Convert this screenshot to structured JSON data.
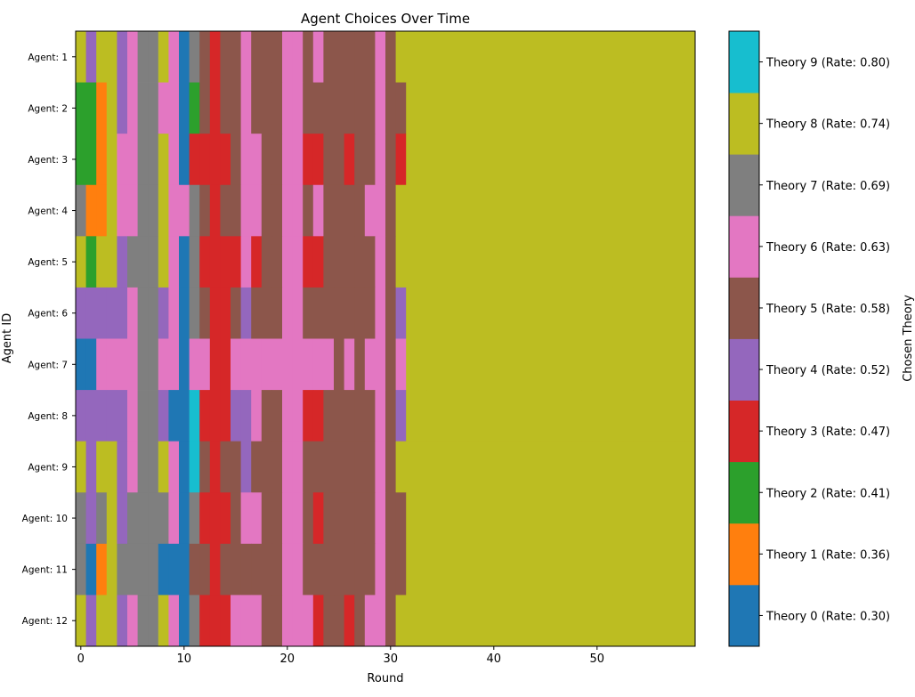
{
  "chart_data": {
    "type": "heatmap",
    "title": "Agent Choices Over Time",
    "xlabel": "Round",
    "ylabel": "Agent ID",
    "colorbar_label": "Chosen Theory",
    "x_ticks": [
      0,
      10,
      20,
      30,
      40,
      50
    ],
    "xlim": [
      -0.5,
      59.5
    ],
    "rounds": 60,
    "agents": [
      "Agent: 1",
      "Agent: 2",
      "Agent: 3",
      "Agent: 4",
      "Agent: 5",
      "Agent: 6",
      "Agent: 7",
      "Agent: 8",
      "Agent: 9",
      "Agent: 10",
      "Agent: 11",
      "Agent: 12"
    ],
    "theories": [
      {
        "label": "Theory 0 (Rate: 0.30)",
        "color": "#1f77b4"
      },
      {
        "label": "Theory 1 (Rate: 0.36)",
        "color": "#ff7f0e"
      },
      {
        "label": "Theory 2 (Rate: 0.41)",
        "color": "#2ca02c"
      },
      {
        "label": "Theory 3 (Rate: 0.47)",
        "color": "#d62728"
      },
      {
        "label": "Theory 4 (Rate: 0.52)",
        "color": "#9467bd"
      },
      {
        "label": "Theory 5 (Rate: 0.58)",
        "color": "#8c564b"
      },
      {
        "label": "Theory 6 (Rate: 0.63)",
        "color": "#e377c2"
      },
      {
        "label": "Theory 7 (Rate: 0.69)",
        "color": "#7f7f7f"
      },
      {
        "label": "Theory 8 (Rate: 0.74)",
        "color": "#bcbd22"
      },
      {
        "label": "Theory 9 (Rate: 0.80)",
        "color": "#17becf"
      }
    ],
    "choices": [
      [
        8,
        4,
        8,
        8,
        4,
        6,
        7,
        7,
        8,
        6,
        0,
        7,
        5,
        3,
        5,
        5,
        6,
        5,
        5,
        5,
        6,
        6,
        5,
        6,
        5,
        5,
        5,
        5,
        5,
        6,
        5,
        8,
        8,
        8,
        8,
        8,
        8,
        8,
        8,
        8,
        8,
        8,
        8,
        8,
        8,
        8,
        8,
        8,
        8,
        8,
        8,
        8,
        8,
        8,
        8,
        8,
        8,
        8,
        8,
        8
      ],
      [
        2,
        2,
        1,
        8,
        4,
        6,
        7,
        7,
        6,
        6,
        0,
        2,
        5,
        3,
        5,
        5,
        6,
        5,
        5,
        5,
        6,
        6,
        5,
        5,
        5,
        5,
        5,
        5,
        5,
        6,
        5,
        5,
        8,
        8,
        8,
        8,
        8,
        8,
        8,
        8,
        8,
        8,
        8,
        8,
        8,
        8,
        8,
        8,
        8,
        8,
        8,
        8,
        8,
        8,
        8,
        8,
        8,
        8,
        8,
        8
      ],
      [
        2,
        2,
        1,
        8,
        6,
        6,
        7,
        7,
        8,
        6,
        0,
        3,
        3,
        3,
        3,
        5,
        6,
        6,
        5,
        5,
        6,
        6,
        3,
        3,
        5,
        5,
        3,
        5,
        5,
        6,
        5,
        3,
        8,
        8,
        8,
        8,
        8,
        8,
        8,
        8,
        8,
        8,
        8,
        8,
        8,
        8,
        8,
        8,
        8,
        8,
        8,
        8,
        8,
        8,
        8,
        8,
        8,
        8,
        8,
        8
      ],
      [
        7,
        1,
        1,
        8,
        6,
        6,
        7,
        7,
        8,
        6,
        6,
        7,
        5,
        3,
        5,
        5,
        6,
        6,
        5,
        5,
        6,
        6,
        5,
        6,
        5,
        5,
        5,
        5,
        6,
        6,
        5,
        8,
        8,
        8,
        8,
        8,
        8,
        8,
        8,
        8,
        8,
        8,
        8,
        8,
        8,
        8,
        8,
        8,
        8,
        8,
        8,
        8,
        8,
        8,
        8,
        8,
        8,
        8,
        8,
        8
      ],
      [
        8,
        2,
        8,
        8,
        4,
        7,
        7,
        7,
        8,
        6,
        0,
        7,
        3,
        3,
        3,
        3,
        6,
        3,
        5,
        5,
        6,
        6,
        3,
        3,
        5,
        5,
        5,
        5,
        5,
        6,
        5,
        8,
        8,
        8,
        8,
        8,
        8,
        8,
        8,
        8,
        8,
        8,
        8,
        8,
        8,
        8,
        8,
        8,
        8,
        8,
        8,
        8,
        8,
        8,
        8,
        8,
        8,
        8,
        8,
        8
      ],
      [
        4,
        4,
        4,
        4,
        4,
        6,
        7,
        7,
        4,
        6,
        0,
        7,
        5,
        3,
        3,
        5,
        4,
        5,
        5,
        5,
        6,
        6,
        5,
        5,
        5,
        5,
        5,
        5,
        5,
        6,
        5,
        4,
        8,
        8,
        8,
        8,
        8,
        8,
        8,
        8,
        8,
        8,
        8,
        8,
        8,
        8,
        8,
        8,
        8,
        8,
        8,
        8,
        8,
        8,
        8,
        8,
        8,
        8,
        8,
        8
      ],
      [
        0,
        0,
        6,
        6,
        6,
        6,
        7,
        7,
        6,
        6,
        0,
        6,
        6,
        3,
        3,
        6,
        6,
        6,
        6,
        6,
        6,
        6,
        6,
        6,
        6,
        5,
        6,
        5,
        6,
        6,
        5,
        6,
        8,
        8,
        8,
        8,
        8,
        8,
        8,
        8,
        8,
        8,
        8,
        8,
        8,
        8,
        8,
        8,
        8,
        8,
        8,
        8,
        8,
        8,
        8,
        8,
        8,
        8,
        8,
        8
      ],
      [
        4,
        4,
        4,
        4,
        4,
        6,
        7,
        7,
        4,
        0,
        0,
        9,
        3,
        3,
        3,
        4,
        4,
        6,
        5,
        5,
        6,
        6,
        3,
        3,
        5,
        5,
        5,
        5,
        5,
        6,
        5,
        4,
        8,
        8,
        8,
        8,
        8,
        8,
        8,
        8,
        8,
        8,
        8,
        8,
        8,
        8,
        8,
        8,
        8,
        8,
        8,
        8,
        8,
        8,
        8,
        8,
        8,
        8,
        8,
        8
      ],
      [
        8,
        4,
        8,
        8,
        4,
        6,
        7,
        7,
        8,
        6,
        0,
        9,
        5,
        3,
        5,
        5,
        4,
        5,
        5,
        5,
        6,
        6,
        5,
        5,
        5,
        5,
        5,
        5,
        5,
        6,
        5,
        8,
        8,
        8,
        8,
        8,
        8,
        8,
        8,
        8,
        8,
        8,
        8,
        8,
        8,
        8,
        8,
        8,
        8,
        8,
        8,
        8,
        8,
        8,
        8,
        8,
        8,
        8,
        8,
        8
      ],
      [
        7,
        4,
        7,
        8,
        4,
        7,
        7,
        7,
        7,
        6,
        0,
        7,
        3,
        3,
        3,
        5,
        6,
        6,
        5,
        5,
        6,
        6,
        5,
        3,
        5,
        5,
        5,
        5,
        5,
        6,
        5,
        5,
        8,
        8,
        8,
        8,
        8,
        8,
        8,
        8,
        8,
        8,
        8,
        8,
        8,
        8,
        8,
        8,
        8,
        8,
        8,
        8,
        8,
        8,
        8,
        8,
        8,
        8,
        8,
        8
      ],
      [
        7,
        0,
        1,
        8,
        7,
        7,
        7,
        7,
        0,
        0,
        0,
        5,
        5,
        3,
        5,
        5,
        5,
        5,
        5,
        5,
        6,
        6,
        5,
        5,
        5,
        5,
        5,
        5,
        5,
        6,
        5,
        5,
        8,
        8,
        8,
        8,
        8,
        8,
        8,
        8,
        8,
        8,
        8,
        8,
        8,
        8,
        8,
        8,
        8,
        8,
        8,
        8,
        8,
        8,
        8,
        8,
        8,
        8,
        8,
        8
      ],
      [
        8,
        4,
        8,
        8,
        4,
        6,
        7,
        7,
        8,
        6,
        0,
        7,
        3,
        3,
        3,
        6,
        6,
        6,
        5,
        5,
        6,
        6,
        6,
        3,
        5,
        5,
        3,
        5,
        6,
        6,
        5,
        8,
        8,
        8,
        8,
        8,
        8,
        8,
        8,
        8,
        8,
        8,
        8,
        8,
        8,
        8,
        8,
        8,
        8,
        8,
        8,
        8,
        8,
        8,
        8,
        8,
        8,
        8,
        8,
        8
      ]
    ]
  }
}
